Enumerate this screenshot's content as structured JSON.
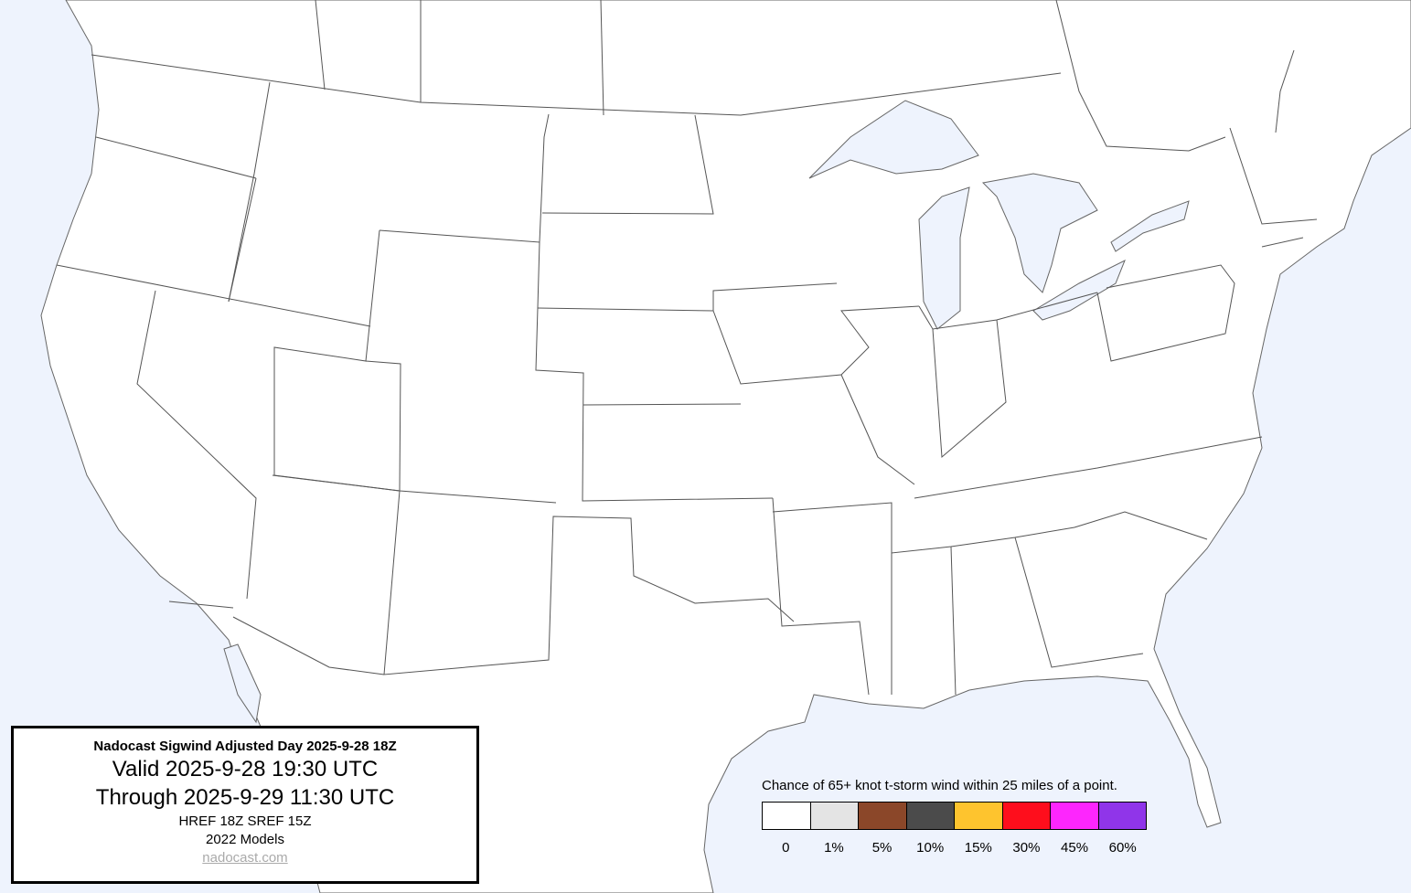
{
  "title_box": {
    "title": "Nadocast Sigwind Adjusted Day 2025-9-28 18Z",
    "valid": "Valid 2025-9-28 19:30 UTC",
    "through": "Through 2025-9-29 11:30 UTC",
    "models_run": "HREF 18Z SREF 15Z",
    "models_version": "2022 Models",
    "site": "nadocast.com"
  },
  "legend": {
    "title": "Chance of 65+ knot t-storm wind within 25 miles of a point.",
    "bins": [
      {
        "label": "0",
        "color": "#ffffff"
      },
      {
        "label": "1%",
        "color": "#e4e4e4"
      },
      {
        "label": "5%",
        "color": "#8b4729"
      },
      {
        "label": "10%",
        "color": "#4b4b4b"
      },
      {
        "label": "15%",
        "color": "#fec42e"
      },
      {
        "label": "30%",
        "color": "#fe0e1c"
      },
      {
        "label": "45%",
        "color": "#fd26fd"
      },
      {
        "label": "60%",
        "color": "#9035e9"
      }
    ]
  },
  "map": {
    "water_color": "#eef3fd",
    "land_color": "#ffffff",
    "border_color": "#555555"
  }
}
